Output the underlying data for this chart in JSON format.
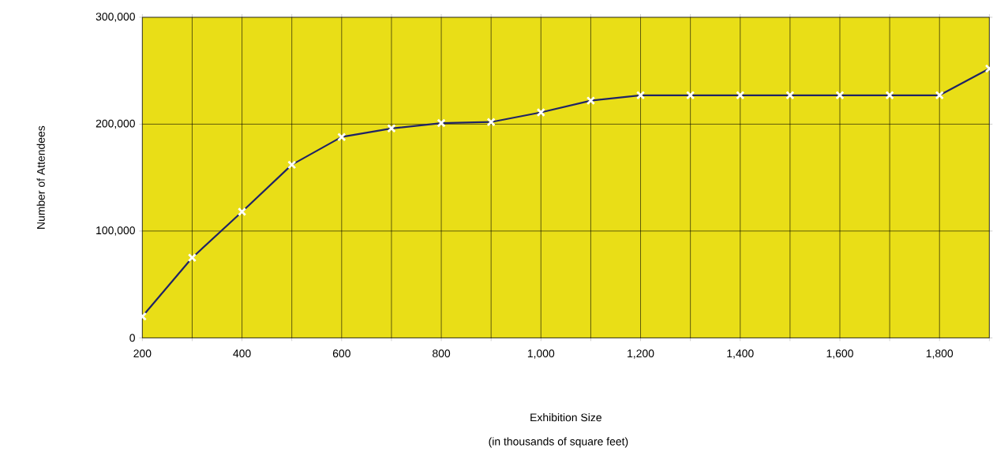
{
  "chart_data": {
    "type": "line",
    "xlabel": "Exhibition Size",
    "ylabel": "Number of Attendees",
    "annotations": [
      "(in thousands of square feet)"
    ],
    "x": [
      200,
      300,
      400,
      500,
      600,
      700,
      800,
      900,
      1000,
      1100,
      1200,
      1300,
      1400,
      1500,
      1600,
      1700,
      1800,
      1900
    ],
    "series": [
      {
        "color": "#1f2366",
        "values": [
          20000,
          75000,
          118000,
          162000,
          188000,
          196000,
          201000,
          202000,
          211000,
          222000,
          227000,
          227000,
          227000,
          227000,
          227000,
          227000,
          227000,
          252000
        ]
      }
    ],
    "xlim": [
      200,
      1900
    ],
    "ylim": [
      0,
      300000
    ],
    "xticks": [
      200,
      {
        "value": 300,
        "label": null
      },
      400,
      {
        "value": 500,
        "label": null
      },
      600,
      {
        "value": 700,
        "label": null
      },
      800,
      {
        "value": 900,
        "label": null
      },
      {
        "value": 1000,
        "label": "1,000"
      },
      {
        "value": 1100,
        "label": null
      },
      {
        "value": 1200,
        "label": "1,200"
      },
      {
        "value": 1300,
        "label": null
      },
      {
        "value": 1400,
        "label": "1,400"
      },
      {
        "value": 1500,
        "label": null
      },
      {
        "value": 1600,
        "label": "1,600"
      },
      {
        "value": 1700,
        "label": null
      },
      {
        "value": 1800,
        "label": "1,800"
      },
      {
        "value": 1900,
        "label": null
      }
    ],
    "yticks": [
      0,
      {
        "value": 100000,
        "label": "100,000"
      },
      {
        "value": 200000,
        "label": "200,000"
      },
      {
        "value": 300000,
        "label": "300,000"
      }
    ],
    "grid": true,
    "marker": "cross",
    "line_style": "solid"
  }
}
